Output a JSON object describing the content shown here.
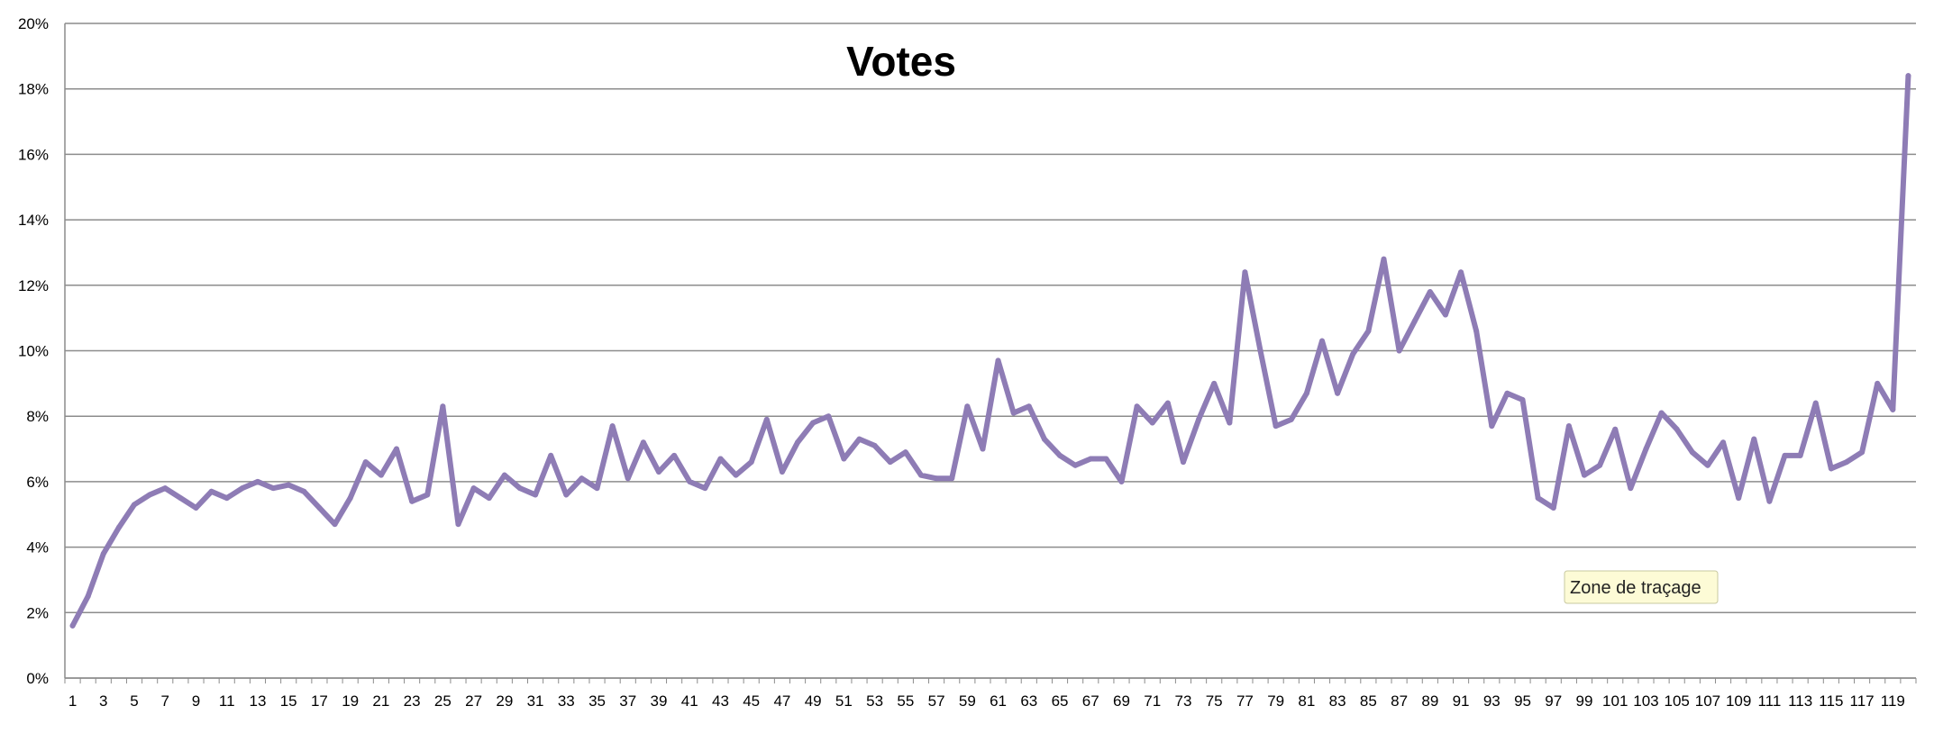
{
  "chart_data": {
    "type": "line",
    "title": "Votes",
    "xlabel": "",
    "ylabel": "",
    "ylim": [
      0,
      0.2
    ],
    "y_ticks": [
      "0%",
      "2%",
      "4%",
      "6%",
      "8%",
      "10%",
      "12%",
      "14%",
      "16%",
      "18%",
      "20%"
    ],
    "x_tick_step": 2,
    "grid": true,
    "legend": "none",
    "line_color": "#8e7cb5",
    "x": [
      1,
      2,
      3,
      4,
      5,
      6,
      7,
      8,
      9,
      10,
      11,
      12,
      13,
      14,
      15,
      16,
      17,
      18,
      19,
      20,
      21,
      22,
      23,
      24,
      25,
      26,
      27,
      28,
      29,
      30,
      31,
      32,
      33,
      34,
      35,
      36,
      37,
      38,
      39,
      40,
      41,
      42,
      43,
      44,
      45,
      46,
      47,
      48,
      49,
      50,
      51,
      52,
      53,
      54,
      55,
      56,
      57,
      58,
      59,
      60,
      61,
      62,
      63,
      64,
      65,
      66,
      67,
      68,
      69,
      70,
      71,
      72,
      73,
      74,
      75,
      76,
      77,
      78,
      79,
      80,
      81,
      82,
      83,
      84,
      85,
      86,
      87,
      88,
      89,
      90,
      91,
      92,
      93,
      94,
      95,
      96,
      97,
      98,
      99,
      100,
      101,
      102,
      103,
      104,
      105,
      106,
      107,
      108,
      109,
      110,
      111,
      112,
      113,
      114,
      115,
      116,
      117,
      118,
      119,
      120
    ],
    "series": [
      {
        "values": [
          0.016,
          0.025,
          0.038,
          0.046,
          0.053,
          0.056,
          0.058,
          0.055,
          0.052,
          0.057,
          0.055,
          0.058,
          0.06,
          0.058,
          0.059,
          0.057,
          0.052,
          0.047,
          0.055,
          0.066,
          0.062,
          0.07,
          0.054,
          0.056,
          0.083,
          0.047,
          0.058,
          0.055,
          0.062,
          0.058,
          0.056,
          0.068,
          0.056,
          0.061,
          0.058,
          0.077,
          0.061,
          0.072,
          0.063,
          0.068,
          0.06,
          0.058,
          0.067,
          0.062,
          0.066,
          0.079,
          0.063,
          0.072,
          0.078,
          0.08,
          0.067,
          0.073,
          0.071,
          0.066,
          0.069,
          0.062,
          0.061,
          0.061,
          0.083,
          0.07,
          0.097,
          0.081,
          0.083,
          0.073,
          0.068,
          0.065,
          0.067,
          0.067,
          0.06,
          0.083,
          0.078,
          0.084,
          0.066,
          0.079,
          0.09,
          0.078,
          0.124,
          0.1,
          0.077,
          0.079,
          0.087,
          0.103,
          0.087,
          0.099,
          0.106,
          0.128,
          0.1,
          0.109,
          0.118,
          0.111,
          0.124,
          0.106,
          0.077,
          0.087,
          0.085,
          0.055,
          0.052,
          0.077,
          0.062,
          0.065,
          0.076,
          0.058,
          0.07,
          0.081,
          0.076,
          0.069,
          0.065,
          0.072,
          0.055,
          0.073,
          0.054,
          0.068,
          0.068,
          0.084,
          0.064,
          0.066,
          0.069,
          0.09,
          0.082,
          0.184
        ]
      }
    ]
  },
  "tooltip": {
    "text": "Zone de traçage"
  }
}
